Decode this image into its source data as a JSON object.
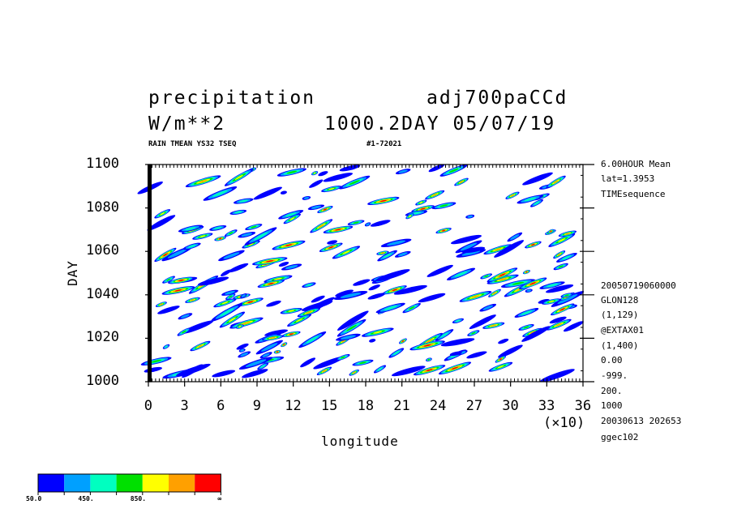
{
  "header": {
    "var_name": "precipitation",
    "run_name": "adj700paCCd",
    "units": "W/m**2",
    "day_date": "1000.2DAY 05/07/19",
    "subtitle_left": "RAIN TMEAN YS32 TSEQ",
    "subtitle_right": "#1-72021"
  },
  "side_info": {
    "lines_top": [
      "6.00HOUR Mean",
      "lat=1.3953",
      "TIMEsequence"
    ],
    "lines_bottom": [
      "20050719060000",
      "GLON128",
      "(1,129)",
      "@EXTAX01",
      "(1,400)",
      "0.00",
      "-999.",
      "200.",
      "1000",
      "20030613 202653",
      "ggec102"
    ]
  },
  "chart_data": {
    "type": "heatmap",
    "xlabel": "longitude",
    "ylabel": "DAY",
    "x_multiplier_label": "(×10)",
    "xlim": [
      0,
      36
    ],
    "ylim": [
      1000,
      1100
    ],
    "x_ticks": [
      "0",
      "3",
      "6",
      "9",
      "12",
      "15",
      "18",
      "21",
      "24",
      "27",
      "30",
      "33",
      "36"
    ],
    "y_ticks": [
      "1000",
      "1020",
      "1040",
      "1060",
      "1080",
      "1100"
    ],
    "levels": [
      50,
      250,
      450,
      650,
      850,
      1050,
      1250
    ],
    "colors": [
      "#0000ff",
      "#00a0ff",
      "#00ffc0",
      "#00e000",
      "#ffff00",
      "#ffa000",
      "#ff0000"
    ],
    "legend_labels": [
      "50.0",
      "450.",
      "850.",
      "∞"
    ]
  }
}
